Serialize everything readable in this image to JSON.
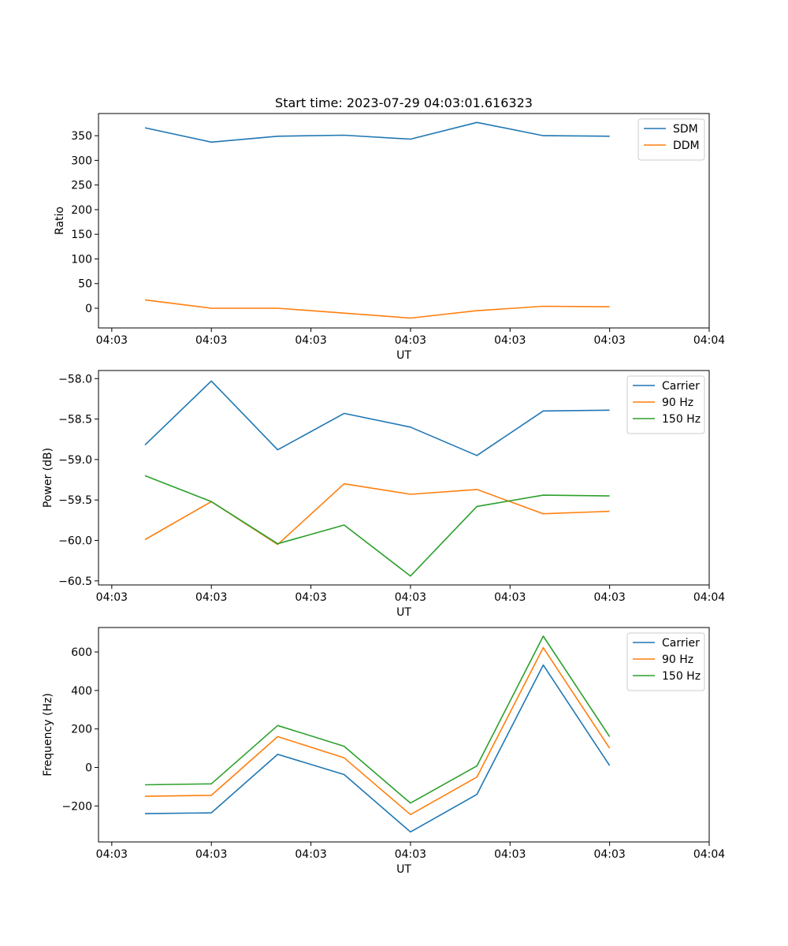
{
  "chart_data": [
    {
      "type": "line",
      "title": "Start time: 2023-07-29 04:03:01.616323",
      "xlabel": "UT",
      "ylabel": "Ratio",
      "x": [
        1.5,
        2.5,
        3.5,
        4.5,
        5.5,
        6.5,
        7.5,
        8.5
      ],
      "xlim": [
        0.8,
        10.0
      ],
      "xticks": [
        1,
        2.5,
        4,
        5.5,
        7,
        8.5,
        10
      ],
      "xtick_labels": [
        "04:03",
        "04:03",
        "04:03",
        "04:03",
        "04:03",
        "04:03",
        "04:04"
      ],
      "ylim": [
        -40,
        395
      ],
      "yticks": [
        0,
        50,
        100,
        150,
        200,
        250,
        300,
        350
      ],
      "ytick_labels": [
        "0",
        "50",
        "100",
        "150",
        "200",
        "250",
        "300",
        "350"
      ],
      "legend_position": "top-right",
      "series": [
        {
          "name": "SDM",
          "color": "#1f77b4",
          "values": [
            366,
            337,
            349,
            351,
            343,
            377,
            350,
            349
          ]
        },
        {
          "name": "DDM",
          "color": "#ff7f0e",
          "values": [
            17,
            0,
            0,
            -10,
            -20,
            -5,
            4,
            3
          ]
        }
      ]
    },
    {
      "type": "line",
      "title": "",
      "xlabel": "UT",
      "ylabel": "Power (dB)",
      "x": [
        1.5,
        2.5,
        3.5,
        4.5,
        5.5,
        6.5,
        7.5,
        8.5
      ],
      "xlim": [
        0.8,
        10.0
      ],
      "xticks": [
        1,
        2.5,
        4,
        5.5,
        7,
        8.5,
        10
      ],
      "xtick_labels": [
        "04:03",
        "04:03",
        "04:03",
        "04:03",
        "04:03",
        "04:03",
        "04:04"
      ],
      "ylim": [
        -60.55,
        -57.9
      ],
      "yticks": [
        -60.5,
        -60.0,
        -59.5,
        -59.0,
        -58.5,
        -58.0
      ],
      "ytick_labels": [
        "−60.5",
        "−60.0",
        "−59.5",
        "−59.0",
        "−58.5",
        "−58.0"
      ],
      "legend_position": "top-right",
      "series": [
        {
          "name": "Carrier",
          "color": "#1f77b4",
          "values": [
            -58.82,
            -58.03,
            -58.88,
            -58.43,
            -58.6,
            -58.95,
            -58.4,
            -58.39
          ]
        },
        {
          "name": "90 Hz",
          "color": "#ff7f0e",
          "values": [
            -59.99,
            -59.52,
            -60.05,
            -59.3,
            -59.43,
            -59.37,
            -59.67,
            -59.64
          ]
        },
        {
          "name": "150 Hz",
          "color": "#2ca02c",
          "values": [
            -59.2,
            -59.52,
            -60.04,
            -59.81,
            -60.44,
            -59.58,
            -59.44,
            -59.45
          ]
        }
      ]
    },
    {
      "type": "line",
      "title": "",
      "xlabel": "UT",
      "ylabel": "Frequency (Hz)",
      "x": [
        1.5,
        2.5,
        3.5,
        4.5,
        5.5,
        6.5,
        7.5,
        8.5
      ],
      "xlim": [
        0.8,
        10.0
      ],
      "xticks": [
        1,
        2.5,
        4,
        5.5,
        7,
        8.5,
        10
      ],
      "xtick_labels": [
        "04:03",
        "04:03",
        "04:03",
        "04:03",
        "04:03",
        "04:03",
        "04:04"
      ],
      "ylim": [
        -387,
        727
      ],
      "yticks": [
        -200,
        0,
        200,
        400,
        600
      ],
      "ytick_labels": [
        "−200",
        "0",
        "200",
        "400",
        "600"
      ],
      "legend_position": "top-right",
      "series": [
        {
          "name": "Carrier",
          "color": "#1f77b4",
          "values": [
            -240,
            -236,
            68,
            -37,
            -335,
            -140,
            532,
            10
          ]
        },
        {
          "name": "90 Hz",
          "color": "#ff7f0e",
          "values": [
            -150,
            -145,
            160,
            50,
            -245,
            -50,
            622,
            100
          ]
        },
        {
          "name": "150 Hz",
          "color": "#2ca02c",
          "values": [
            -90,
            -85,
            218,
            110,
            -185,
            8,
            682,
            160
          ]
        }
      ]
    }
  ]
}
